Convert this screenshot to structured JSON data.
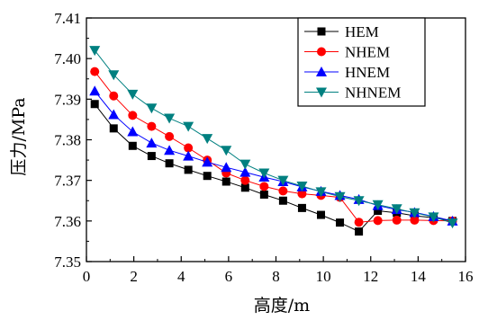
{
  "chart_data": {
    "type": "line",
    "xlabel": "高度/m",
    "ylabel": "压力/MPa",
    "xlim": [
      0,
      16
    ],
    "ylim": [
      7.35,
      7.41
    ],
    "xticks": [
      0,
      2,
      4,
      6,
      8,
      10,
      12,
      14,
      16
    ],
    "yticks": [
      7.35,
      7.36,
      7.37,
      7.38,
      7.39,
      7.4,
      7.41
    ],
    "ytick_labels": [
      "7.35",
      "7.36",
      "7.37",
      "7.38",
      "7.39",
      "7.40",
      "7.41"
    ],
    "grid": false,
    "legend_position": "top-right",
    "x": [
      0.35,
      1.15,
      1.95,
      2.75,
      3.5,
      4.3,
      5.1,
      5.9,
      6.7,
      7.5,
      8.3,
      9.1,
      9.9,
      10.7,
      11.5,
      12.3,
      13.1,
      13.85,
      14.65,
      15.45
    ],
    "series": [
      {
        "name": "HEM",
        "color": "#000000",
        "marker": "square",
        "values": [
          7.3888,
          7.3828,
          7.3785,
          7.376,
          7.3742,
          7.3726,
          7.3711,
          7.3697,
          7.3682,
          7.3665,
          7.365,
          7.3632,
          7.3615,
          7.3596,
          7.3574,
          7.3625,
          7.362,
          7.3613,
          7.3608,
          7.36
        ]
      },
      {
        "name": "NHEM",
        "color": "#ff0000",
        "marker": "circle",
        "values": [
          7.3968,
          7.3908,
          7.386,
          7.3833,
          7.3808,
          7.378,
          7.375,
          7.3718,
          7.37,
          7.3685,
          7.3674,
          7.3667,
          7.3663,
          7.3658,
          7.3597,
          7.3601,
          7.3602,
          7.3602,
          7.3601,
          7.36
        ]
      },
      {
        "name": "HNEM",
        "color": "#0000ff",
        "marker": "triangle-up",
        "values": [
          7.392,
          7.3862,
          7.382,
          7.3792,
          7.3774,
          7.376,
          7.3745,
          7.3732,
          7.372,
          7.3708,
          7.3697,
          7.3684,
          7.3673,
          7.3663,
          7.3653,
          7.3638,
          7.3628,
          7.3621,
          7.3611,
          7.36
        ]
      },
      {
        "name": "NHNEM",
        "color": "#008080",
        "marker": "triangle-down",
        "values": [
          7.402,
          7.396,
          7.3912,
          7.3878,
          7.3853,
          7.3833,
          7.3803,
          7.3774,
          7.374,
          7.3718,
          7.37,
          7.3686,
          7.3672,
          7.366,
          7.365,
          7.364,
          7.363,
          7.362,
          7.361,
          7.3595
        ]
      }
    ]
  }
}
